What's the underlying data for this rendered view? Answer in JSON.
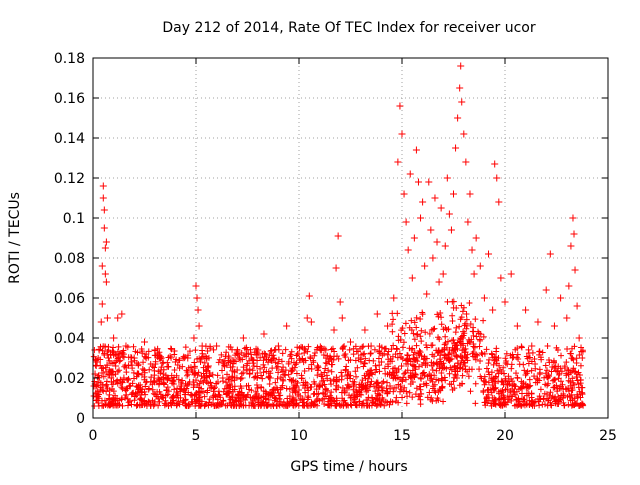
{
  "chart_data": {
    "type": "scatter",
    "title": "Day 212 of 2014, Rate Of TEC Index for receiver ucor",
    "xlabel": "GPS time / hours",
    "ylabel": "ROTI / TECUs",
    "xlim": [
      0,
      25
    ],
    "ylim": [
      0,
      0.18
    ],
    "x_ticks": [
      0,
      5,
      10,
      15,
      20,
      25
    ],
    "y_ticks": [
      0,
      0.02,
      0.04,
      0.06,
      0.08,
      0.1,
      0.12,
      0.14,
      0.16,
      0.18
    ],
    "x_tick_labels": [
      "0",
      "5",
      "10",
      "15",
      "20",
      "25"
    ],
    "y_tick_labels": [
      "0",
      "0.02",
      "0.04",
      "0.06",
      "0.08",
      "0.1",
      "0.12",
      "0.14",
      "0.16",
      "0.18"
    ],
    "grid": true,
    "marker": "plus",
    "color": "#ff0000",
    "series": [
      {
        "points": [
          [
            0.05,
            0.016
          ],
          [
            0.1,
            0.022
          ],
          [
            0.15,
            0.012
          ],
          [
            0.2,
            0.028
          ],
          [
            0.25,
            0.018
          ],
          [
            0.3,
            0.034
          ],
          [
            0.35,
            0.014
          ],
          [
            0.4,
            0.048
          ],
          [
            0.45,
            0.057
          ],
          [
            0.45,
            0.076
          ],
          [
            0.5,
            0.11
          ],
          [
            0.5,
            0.116
          ],
          [
            0.55,
            0.104
          ],
          [
            0.55,
            0.095
          ],
          [
            0.6,
            0.085
          ],
          [
            0.6,
            0.072
          ],
          [
            0.65,
            0.088
          ],
          [
            0.65,
            0.068
          ],
          [
            0.7,
            0.05
          ],
          [
            0.75,
            0.03
          ],
          [
            0.8,
            0.022
          ],
          [
            0.9,
            0.018
          ],
          [
            1.0,
            0.04
          ],
          [
            1.1,
            0.026
          ],
          [
            1.2,
            0.05
          ],
          [
            1.3,
            0.032
          ],
          [
            1.4,
            0.052
          ],
          [
            1.5,
            0.02
          ],
          [
            1.6,
            0.036
          ],
          [
            1.8,
            0.016
          ],
          [
            2.0,
            0.03
          ],
          [
            2.2,
            0.022
          ],
          [
            2.5,
            0.038
          ],
          [
            2.8,
            0.018
          ],
          [
            3.0,
            0.034
          ],
          [
            3.3,
            0.024
          ],
          [
            3.6,
            0.02
          ],
          [
            4.0,
            0.028
          ],
          [
            4.3,
            0.016
          ],
          [
            4.6,
            0.03
          ],
          [
            4.9,
            0.04
          ],
          [
            5.0,
            0.066
          ],
          [
            5.05,
            0.06
          ],
          [
            5.1,
            0.054
          ],
          [
            5.15,
            0.046
          ],
          [
            5.3,
            0.036
          ],
          [
            5.6,
            0.026
          ],
          [
            6.0,
            0.036
          ],
          [
            6.3,
            0.02
          ],
          [
            6.6,
            0.03
          ],
          [
            7.0,
            0.024
          ],
          [
            7.3,
            0.04
          ],
          [
            7.6,
            0.022
          ],
          [
            8.0,
            0.034
          ],
          [
            8.3,
            0.042
          ],
          [
            8.6,
            0.02
          ],
          [
            9.0,
            0.036
          ],
          [
            9.4,
            0.046
          ],
          [
            9.7,
            0.024
          ],
          [
            10.0,
            0.032
          ],
          [
            10.4,
            0.05
          ],
          [
            10.5,
            0.061
          ],
          [
            10.6,
            0.048
          ],
          [
            10.9,
            0.026
          ],
          [
            11.3,
            0.034
          ],
          [
            11.7,
            0.044
          ],
          [
            11.8,
            0.075
          ],
          [
            11.9,
            0.091
          ],
          [
            12.0,
            0.058
          ],
          [
            12.1,
            0.05
          ],
          [
            12.5,
            0.038
          ],
          [
            12.9,
            0.03
          ],
          [
            13.2,
            0.044
          ],
          [
            13.5,
            0.036
          ],
          [
            13.8,
            0.052
          ],
          [
            14.0,
            0.028
          ],
          [
            14.3,
            0.046
          ],
          [
            14.6,
            0.06
          ],
          [
            14.8,
            0.128
          ],
          [
            14.9,
            0.156
          ],
          [
            15.0,
            0.142
          ],
          [
            15.1,
            0.112
          ],
          [
            15.2,
            0.098
          ],
          [
            15.3,
            0.084
          ],
          [
            15.4,
            0.122
          ],
          [
            15.5,
            0.07
          ],
          [
            15.6,
            0.09
          ],
          [
            15.7,
            0.134
          ],
          [
            15.8,
            0.118
          ],
          [
            15.9,
            0.1
          ],
          [
            16.0,
            0.108
          ],
          [
            16.1,
            0.076
          ],
          [
            16.2,
            0.062
          ],
          [
            16.3,
            0.118
          ],
          [
            16.4,
            0.094
          ],
          [
            16.5,
            0.08
          ],
          [
            16.6,
            0.11
          ],
          [
            16.7,
            0.088
          ],
          [
            16.8,
            0.068
          ],
          [
            16.9,
            0.105
          ],
          [
            17.0,
            0.072
          ],
          [
            17.1,
            0.086
          ],
          [
            17.2,
            0.12
          ],
          [
            17.3,
            0.102
          ],
          [
            17.4,
            0.094
          ],
          [
            17.5,
            0.112
          ],
          [
            17.6,
            0.135
          ],
          [
            17.7,
            0.15
          ],
          [
            17.8,
            0.165
          ],
          [
            17.85,
            0.176
          ],
          [
            17.9,
            0.158
          ],
          [
            18.0,
            0.142
          ],
          [
            18.1,
            0.128
          ],
          [
            18.2,
            0.098
          ],
          [
            18.3,
            0.112
          ],
          [
            18.4,
            0.084
          ],
          [
            18.5,
            0.072
          ],
          [
            18.6,
            0.09
          ],
          [
            18.8,
            0.076
          ],
          [
            19.0,
            0.06
          ],
          [
            19.2,
            0.082
          ],
          [
            19.4,
            0.054
          ],
          [
            19.5,
            0.127
          ],
          [
            19.6,
            0.12
          ],
          [
            19.7,
            0.108
          ],
          [
            19.8,
            0.07
          ],
          [
            20.0,
            0.058
          ],
          [
            20.3,
            0.072
          ],
          [
            20.6,
            0.046
          ],
          [
            21.0,
            0.054
          ],
          [
            21.3,
            0.036
          ],
          [
            21.6,
            0.048
          ],
          [
            22.0,
            0.064
          ],
          [
            22.2,
            0.082
          ],
          [
            22.4,
            0.046
          ],
          [
            22.7,
            0.06
          ],
          [
            23.0,
            0.05
          ],
          [
            23.1,
            0.066
          ],
          [
            23.2,
            0.086
          ],
          [
            23.3,
            0.1
          ],
          [
            23.35,
            0.092
          ],
          [
            23.4,
            0.074
          ],
          [
            23.5,
            0.056
          ],
          [
            23.6,
            0.04
          ]
        ]
      }
    ]
  }
}
